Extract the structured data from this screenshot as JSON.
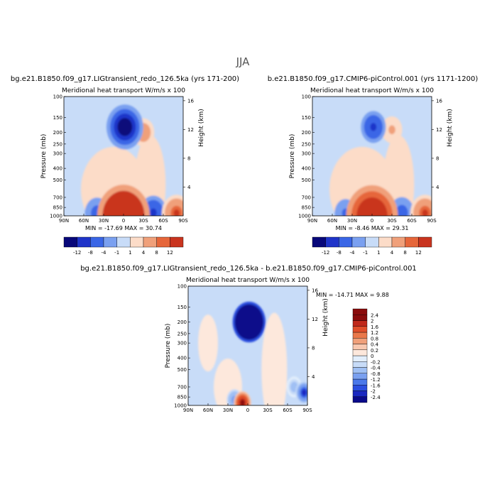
{
  "figure": {
    "season": "JJA",
    "case_a": "bg.e21.B1850.f09_g17.LIGtransient_redo_126.5ka (yrs 171-200)",
    "case_b": "b.e21.B1850.f09_g17.CMIP6-piControl.001 (yrs 1171-1200)",
    "diff_title": "bg.e21.B1850.f09_g17.LIGtransient_redo_126.5ka - b.e21.B1850.f09_g17.CMIP6-piControl.001"
  },
  "chart_data": [
    {
      "type": "heatmap",
      "name": "lig",
      "title": "Meridional heat transport",
      "units": "W/m/s x 100",
      "xlabel": "",
      "ylabel": "Pressure (mb)",
      "ylabel_right": "Height (km)",
      "x_ticks": [
        "90N",
        "60N",
        "30N",
        "0",
        "30S",
        "60S",
        "90S"
      ],
      "y_ticks": [
        "100",
        "150",
        "200",
        "250",
        "300",
        "400",
        "500",
        "700",
        "850",
        "1000"
      ],
      "y_right_ticks": [
        "16",
        "12",
        "8",
        "4"
      ],
      "stats": "MIN = -17.69   MAX = 30.74",
      "levels": [
        "-12",
        "-8",
        "-4",
        "-1",
        "1",
        "4",
        "8",
        "12"
      ],
      "features": [
        {
          "lat": 0,
          "p": 1000,
          "value": 30.74
        },
        {
          "lat": -2,
          "p": 180,
          "value": -17.69
        },
        {
          "lat": -30,
          "p": 200,
          "value": 6
        },
        {
          "lat": 40,
          "p": 950,
          "value": -8
        },
        {
          "lat": -45,
          "p": 940,
          "value": -10
        },
        {
          "lat": -80,
          "p": 950,
          "value": 12
        }
      ]
    },
    {
      "type": "heatmap",
      "name": "picontrol",
      "title": "Meridional heat transport",
      "units": "W/m/s x 100",
      "xlabel": "",
      "ylabel": "Pressure (mb)",
      "ylabel_right": "Height (km)",
      "x_ticks": [
        "90N",
        "60N",
        "30N",
        "0",
        "30S",
        "60S",
        "90S"
      ],
      "y_ticks": [
        "100",
        "150",
        "200",
        "250",
        "300",
        "400",
        "500",
        "700",
        "850",
        "1000"
      ],
      "y_right_ticks": [
        "16",
        "12",
        "8",
        "4"
      ],
      "stats": "MIN =  -8.46   MAX =  29.31",
      "levels": [
        "-12",
        "-8",
        "-4",
        "-1",
        "1",
        "4",
        "8",
        "12"
      ],
      "features": [
        {
          "lat": 0,
          "p": 1000,
          "value": 29.31
        },
        {
          "lat": -2,
          "p": 180,
          "value": -8.46
        },
        {
          "lat": -30,
          "p": 190,
          "value": 5
        },
        {
          "lat": 40,
          "p": 950,
          "value": -6
        },
        {
          "lat": -45,
          "p": 940,
          "value": -8
        },
        {
          "lat": -80,
          "p": 950,
          "value": 12
        }
      ]
    },
    {
      "type": "heatmap",
      "name": "difference",
      "title": "Meridional heat transport",
      "units": "W/m/s x 100",
      "xlabel": "",
      "ylabel": "Pressure (mb)",
      "ylabel_right": "Height (km)",
      "x_ticks": [
        "90N",
        "60N",
        "30N",
        "0",
        "30S",
        "60S",
        "90S"
      ],
      "y_ticks": [
        "100",
        "150",
        "200",
        "250",
        "300",
        "400",
        "500",
        "700",
        "850",
        "1000"
      ],
      "y_right_ticks": [
        "16",
        "12",
        "8",
        "4"
      ],
      "stats": "MIN = -14.71   MAX =   9.88",
      "levels": [
        "-2.4",
        "-2",
        "-1.6",
        "-1.2",
        "-0.8",
        "-0.4",
        "-0.2",
        "0",
        "0.2",
        "0.4",
        "0.8",
        "1.2",
        "1.6",
        "2",
        "2.4"
      ],
      "features": [
        {
          "lat": -2,
          "p": 200,
          "value": -14.71
        },
        {
          "lat": 8,
          "p": 950,
          "value": 2.4
        },
        {
          "lat": 20,
          "p": 900,
          "value": -1.2
        },
        {
          "lat": -85,
          "p": 780,
          "value": -2.4
        },
        {
          "lat": -70,
          "p": 700,
          "value": -0.8
        }
      ]
    }
  ]
}
